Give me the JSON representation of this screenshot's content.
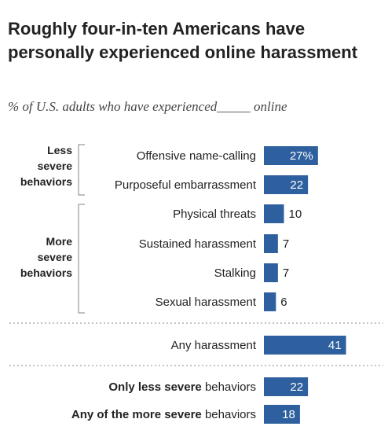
{
  "title": "Roughly four-in-ten Americans have personally experienced online harassment",
  "subtitle": "% of U.S. adults who have experienced_____ online",
  "colors": {
    "bar": "#2e5f9e",
    "divider": "#b0b0b0",
    "bracket": "#9a9a9a"
  },
  "chart_data": {
    "type": "bar",
    "orientation": "horizontal",
    "groups": [
      {
        "label": [
          "Less",
          "severe",
          "behaviors"
        ],
        "categories": [
          "Offensive name-calling",
          "Purposeful embarrassment"
        ]
      },
      {
        "label": [
          "More",
          "severe",
          "behaviors"
        ],
        "categories": [
          "Physical threats",
          "Sustained harassment",
          "Stalking",
          "Sexual harassment"
        ]
      }
    ],
    "rows": [
      {
        "category": "Offensive name-calling",
        "value": 27,
        "label": "27%",
        "label_inside": true
      },
      {
        "category": "Purposeful embarrassment",
        "value": 22,
        "label": "22",
        "label_inside": true
      },
      {
        "category": "Physical threats",
        "value": 10,
        "label": "10",
        "label_inside": false
      },
      {
        "category": "Sustained harassment",
        "value": 7,
        "label": "7",
        "label_inside": false
      },
      {
        "category": "Stalking",
        "value": 7,
        "label": "7",
        "label_inside": false
      },
      {
        "category": "Sexual harassment",
        "value": 6,
        "label": "6",
        "label_inside": false
      },
      {
        "category": "Any harassment",
        "value": 41,
        "label": "41",
        "label_inside": true
      },
      {
        "category_bold": "Only less severe",
        "category_rest": " behaviors",
        "value": 22,
        "label": "22",
        "label_inside": true
      },
      {
        "category_bold": "Any of the more severe",
        "category_rest": " behaviors",
        "value": 18,
        "label": "18",
        "label_inside": true
      }
    ],
    "xlim": [
      0,
      41
    ]
  }
}
